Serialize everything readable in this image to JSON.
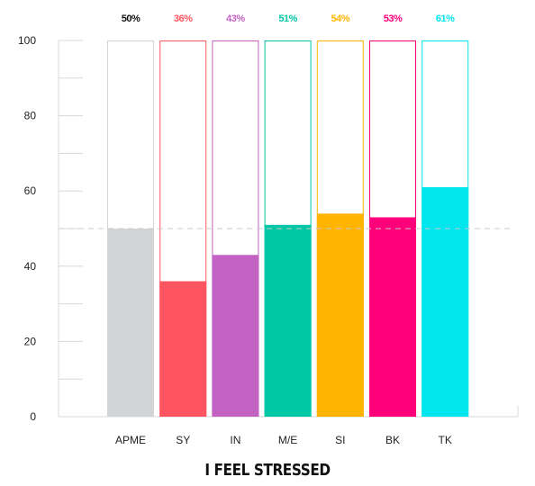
{
  "chart_data": {
    "type": "bar",
    "title": "I FEEL STRESSED",
    "xlabel": "",
    "ylabel": "",
    "ylim": [
      0,
      100
    ],
    "yticks": [
      0,
      20,
      40,
      60,
      80,
      100
    ],
    "grid": "minor ticks every 10",
    "reference_line": 50,
    "categories": [
      "APME",
      "SY",
      "IN",
      "M/E",
      "SI",
      "BK",
      "TK"
    ],
    "values": [
      50,
      36,
      43,
      51,
      54,
      53,
      61
    ],
    "data_labels": [
      "50%",
      "36%",
      "43%",
      "51%",
      "54%",
      "53%",
      "61%"
    ],
    "colors": [
      "#d2d5d8",
      "#ff5561",
      "#c263c3",
      "#00c7a5",
      "#ffb400",
      "#ff007a",
      "#00e6ef"
    ],
    "outline_colors": [
      "#d2d5d8",
      "#ff5561",
      "#c263c3",
      "#00c7a5",
      "#ffb400",
      "#ff007a",
      "#00e6ef"
    ],
    "label_colors": [
      "#111111",
      "#ff5561",
      "#c263c3",
      "#00c7a5",
      "#ffb400",
      "#ff007a",
      "#00e6ef"
    ]
  }
}
